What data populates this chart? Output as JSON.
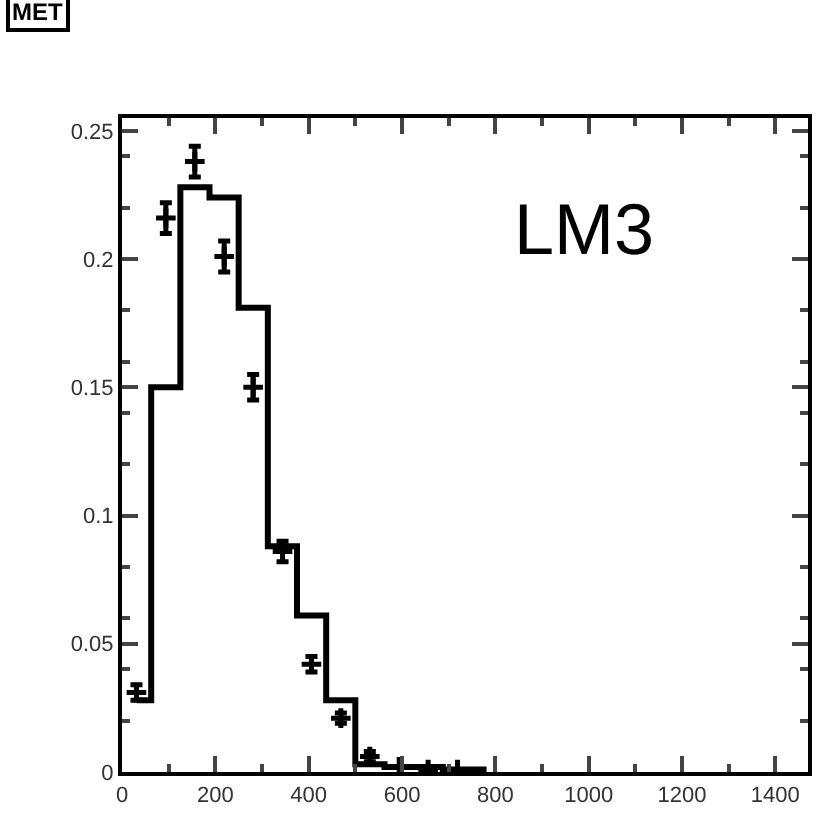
{
  "chart_data": {
    "type": "step",
    "title": "MET",
    "annotations": [
      "LM3"
    ],
    "series": [
      {
        "color": "#000000",
        "x": [
          31.25,
          93.75,
          156.25,
          218.75,
          281.25,
          343.75,
          406.25,
          468.75,
          531.25,
          593.75,
          656.25,
          718.75,
          781.25
        ],
        "values": [
          0.028,
          0.15,
          0.228,
          0.224,
          0.181,
          0.088,
          0.061,
          0.028,
          0.003,
          0.002,
          0.002,
          0.001,
          0.001
        ]
      },
      {
        "type": "scatter",
        "marker": "cross",
        "color": "#000000",
        "x": [
          31,
          94,
          156,
          219,
          281,
          344,
          406,
          469,
          531,
          594,
          656,
          719
        ],
        "values": [
          0.031,
          0.216,
          0.238,
          0.201,
          0.15,
          0.086,
          0.042,
          0.021,
          0.006,
          0.002,
          0.001,
          0.001
        ],
        "errors": [
          0.003,
          0.006,
          0.006,
          0.006,
          0.005,
          0.004,
          0.003,
          0.002,
          0.002,
          null,
          null,
          null
        ]
      }
    ],
    "xlim": [
      0,
      1470
    ],
    "xticks": [
      0,
      200,
      400,
      600,
      800,
      1000,
      1200,
      1400
    ],
    "ylim": [
      0,
      0.255
    ],
    "yticks": [
      0,
      0.05,
      0.1,
      0.15,
      0.2,
      0.25
    ]
  }
}
